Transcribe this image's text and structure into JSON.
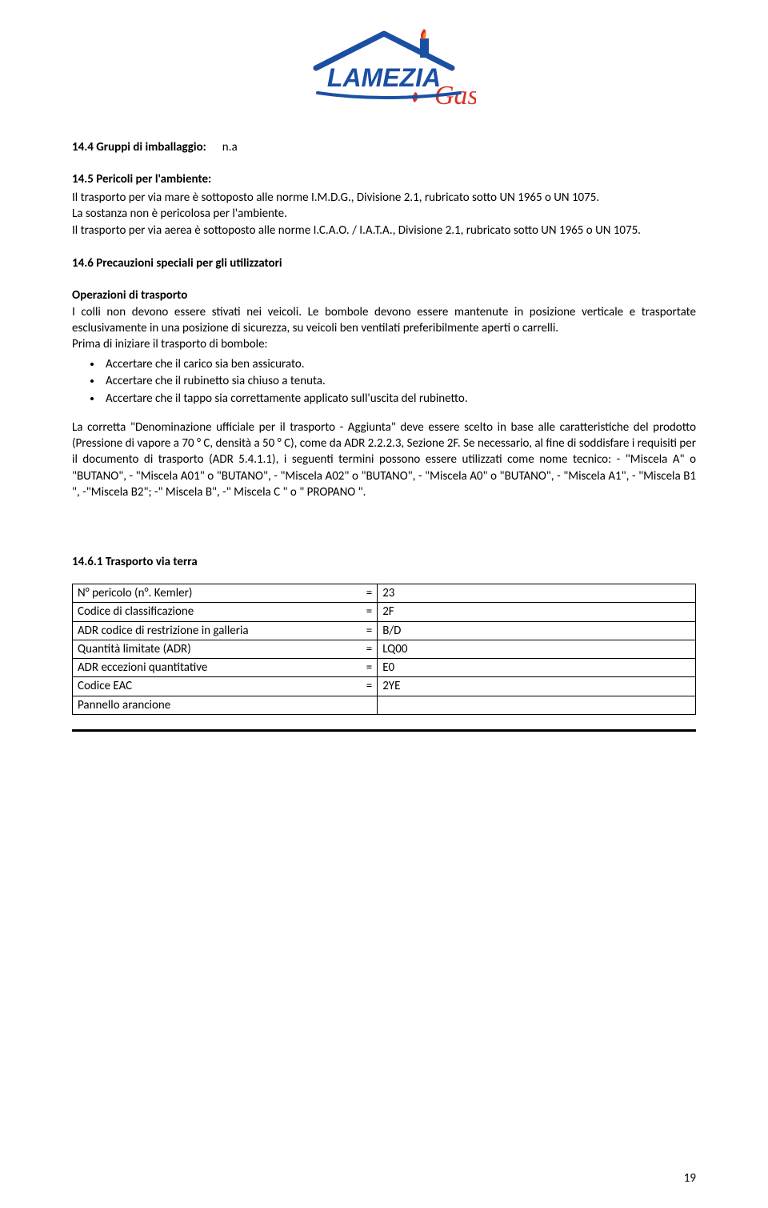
{
  "logo": {
    "brand_text": "LAMEZIA",
    "script_text": "Gas",
    "blue": "#1a4fa3",
    "red": "#d4342a",
    "orange": "#f08a1c"
  },
  "s144": {
    "label": "14.4 Gruppi di imballaggio:",
    "value": "n.a"
  },
  "s145": {
    "heading": "14.5 Pericoli per l'ambiente:",
    "line1": "Il trasporto per via mare è sottoposto alle norme I.M.D.G., Divisione 2.1, rubricato sotto UN 1965 o UN 1075.",
    "line2": "La sostanza non è pericolosa per l'ambiente.",
    "line3": "Il trasporto per via aerea è sottoposto alle norme I.C.A.O. / I.A.T.A., Divisione 2.1, rubricato sotto UN 1965 o UN 1075."
  },
  "s146": {
    "heading": "14.6 Precauzioni speciali per gli utilizzatori",
    "sub": "Operazioni di trasporto",
    "para1": "I colli non devono essere stivati nei veicoli. Le bombole devono essere mantenute in posizione verticale e trasportate esclusivamente in una posizione di sicurezza, su veicoli ben ventilati preferibilmente aperti o carrelli.",
    "intro_bullets": "Prima di iniziare il trasporto di bombole:",
    "bullets": [
      "Accertare che il carico sia ben assicurato.",
      "Accertare che il rubinetto sia chiuso a tenuta.",
      "Accertare che il tappo sia correttamente applicato sull'uscita del rubinetto."
    ],
    "para2": "La corretta \"Denominazione ufficiale per il trasporto - Aggiunta\" deve essere scelto in base alle caratteristiche del prodotto (Pressione di vapore a 70 ° C, densità a 50 ° C), come da ADR 2.2.2.3, Sezione 2F. Se necessario, al fine di soddisfare i requisiti per il documento di trasporto (ADR 5.4.1.1), i seguenti termini possono essere utilizzati come nome tecnico: - \"Miscela A\" o \"BUTANO\", - \"Miscela A01\" o \"BUTANO\", - \"Miscela A02\" o \"BUTANO\", - \"Miscela A0\" o \"BUTANO\", - \"Miscela A1\", - \"Miscela B1 \", -\"Miscela B2\"; -\" Miscela B\", -\" Miscela C \" o \" PROPANO \"."
  },
  "s1461": {
    "heading": "14.6.1  Trasporto via terra",
    "rows": [
      {
        "label": "N° pericolo (n°. Kemler)",
        "eq": "=",
        "val": "23"
      },
      {
        "label": "Codice di classificazione",
        "eq": "=",
        "val": "2F"
      },
      {
        "label": "ADR codice di restrizione in galleria",
        "eq": "=",
        "val": "B/D"
      },
      {
        "label": "Quantità limitate (ADR)",
        "eq": "=",
        "val": "LQ00"
      },
      {
        "label": "ADR eccezioni quantitative",
        "eq": "=",
        "val": "E0"
      },
      {
        "label": "Codice EAC",
        "eq": "=",
        "val": "2YE"
      },
      {
        "label": "Pannello arancione",
        "eq": "",
        "val": ""
      }
    ]
  },
  "page_number": "19"
}
